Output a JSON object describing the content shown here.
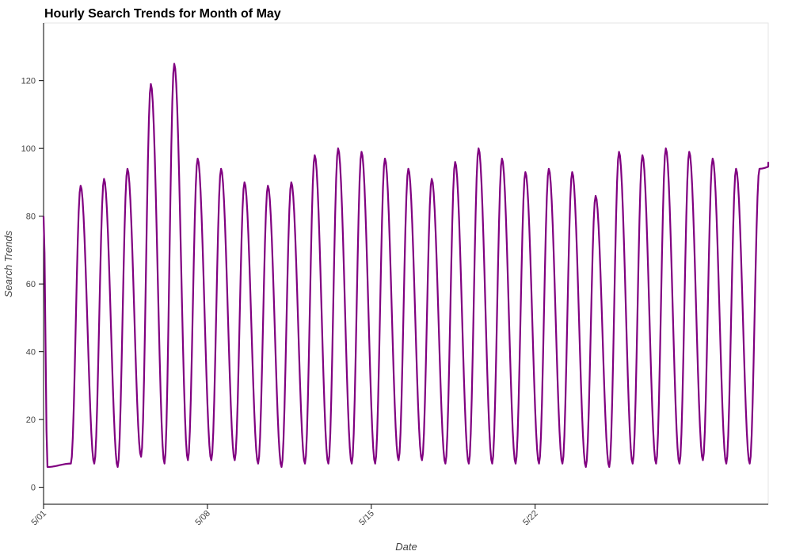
{
  "chart_data": {
    "type": "line",
    "title": "Hourly Search Trends for Month of May",
    "xlabel": "Date",
    "ylabel": "Search Trends",
    "ylim": [
      -5,
      137
    ],
    "yticks": [
      0,
      20,
      40,
      60,
      80,
      100,
      120
    ],
    "xrange": [
      "2020-05-01T00:00",
      "2020-05-31T23:00"
    ],
    "xticks": [
      {
        "date": "2020-05-01",
        "label": "5/01"
      },
      {
        "date": "2020-05-08",
        "label": "5/08"
      },
      {
        "date": "2020-05-15",
        "label": "5/15"
      },
      {
        "date": "2020-05-22",
        "label": "5/22"
      }
    ],
    "grid": false,
    "line_color": "#800080",
    "series": [
      {
        "peaks": [
          80,
          89,
          91,
          94,
          119,
          125,
          97,
          94,
          90,
          89,
          90,
          98,
          100,
          99,
          97,
          94,
          91,
          96,
          100,
          97,
          93,
          94,
          93,
          86,
          99,
          98,
          100,
          99,
          97,
          94,
          94,
          96
        ],
        "troughs": [
          6,
          7,
          7,
          6,
          9,
          7,
          8,
          8,
          8,
          7,
          6,
          7,
          7,
          7,
          7,
          8,
          8,
          7,
          7,
          7,
          7,
          7,
          7,
          6,
          6,
          7,
          7,
          7,
          8,
          7,
          7
        ]
      }
    ]
  }
}
